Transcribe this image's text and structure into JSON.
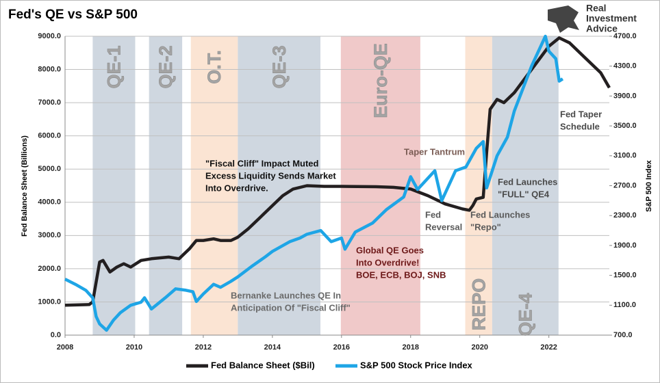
{
  "chart_data": {
    "type": "line",
    "title": "Fed's QE vs S&P 500",
    "logo": [
      "Real",
      "Investment",
      "Advice"
    ],
    "y_label": "Fed Balance Sheet (Billions)",
    "y2_label": "S&P 500 Index",
    "xlim": [
      2008,
      2023.75
    ],
    "xticks": [
      2008,
      2010,
      2012,
      2014,
      2016,
      2018,
      2020,
      2022
    ],
    "ylim": [
      0,
      9000
    ],
    "yticks": [
      {
        "value": 0,
        "label": "0.0"
      },
      {
        "value": 1000,
        "label": "1000.0"
      },
      {
        "value": 2000,
        "label": "2000.0"
      },
      {
        "value": 3000,
        "label": "3000.0"
      },
      {
        "value": 4000,
        "label": "4000.0"
      },
      {
        "value": 5000,
        "label": "5000.0"
      },
      {
        "value": 6000,
        "label": "6000.0"
      },
      {
        "value": 7000,
        "label": "7000.0"
      },
      {
        "value": 8000,
        "label": "8000.0"
      },
      {
        "value": 9000,
        "label": "9000.0"
      }
    ],
    "y2lim": [
      700,
      4700
    ],
    "y2ticks": [
      {
        "value": 700,
        "label": "700.0"
      },
      {
        "value": 1100,
        "label": "1100.0"
      },
      {
        "value": 1500,
        "label": "1500.0"
      },
      {
        "value": 1900,
        "label": "1900.0"
      },
      {
        "value": 2300,
        "label": "2300.0"
      },
      {
        "value": 2700,
        "label": "2700.0"
      },
      {
        "value": 3100,
        "label": "3100.0"
      },
      {
        "value": 3500,
        "label": "3500.0"
      },
      {
        "value": 3900,
        "label": "3900.0"
      },
      {
        "value": 4300,
        "label": "4300.0"
      },
      {
        "value": 4700,
        "label": "4700.0"
      }
    ],
    "grid": true,
    "legend": "bottom",
    "regions": [
      {
        "label": "QE-1",
        "start": 2008.8,
        "end": 2010.03,
        "color": "#cfd7e0"
      },
      {
        "label": "QE-2",
        "start": 2010.43,
        "end": 2011.39,
        "color": "#cfd7e0"
      },
      {
        "label": "O.T.",
        "start": 2011.64,
        "end": 2013.0,
        "color": "#fbe4d3"
      },
      {
        "label": "QE-3",
        "start": 2013.0,
        "end": 2015.39,
        "color": "#cfd7e0"
      },
      {
        "label": "Euro-QE",
        "start": 2015.98,
        "end": 2018.28,
        "color": "#f0c9c9"
      },
      {
        "label": "REPO",
        "start": 2019.58,
        "end": 2020.36,
        "color": "#fbe4d3"
      },
      {
        "label": "QE-4",
        "start": 2020.36,
        "end": 2022.28,
        "color": "#cfd7e0"
      }
    ],
    "annotations": [
      {
        "lines": [
          "\"Fiscal Cliff\" Impact Muted",
          "Excess Liquidity Sends Market",
          "Into Overdrive."
        ],
        "color": "#111111"
      },
      {
        "lines": [
          "Bernanke Launches QE In",
          "Anticipation Of \"Fiscal Cliff\""
        ],
        "color": "#6a6a6a"
      },
      {
        "lines": [
          "Global QE Goes",
          "Into Overdrive!",
          "BOE, ECB, BOJ, SNB"
        ],
        "color": "#6e1a1a"
      },
      {
        "lines": [
          "Taper Tantrum"
        ],
        "color": "#7a5c54"
      },
      {
        "lines": [
          "Fed",
          "Reversal"
        ],
        "color": "#5a5a5a"
      },
      {
        "lines": [
          "Fed Launches",
          "\"Repo\""
        ],
        "color": "#5a5a5a"
      },
      {
        "lines": [
          "Fed Launches",
          "\"FULL\" QE4"
        ],
        "color": "#4a4a4a"
      },
      {
        "lines": [
          "Fed Taper",
          "Schedule"
        ],
        "color": "#4a4a4a"
      }
    ],
    "series": [
      {
        "name": "Fed Balance Sheet ($Bil)",
        "color": "#231f20",
        "axis": "y",
        "x": [
          2008.0,
          2008.7,
          2008.8,
          2009.0,
          2009.1,
          2009.3,
          2009.5,
          2009.7,
          2009.9,
          2010.2,
          2010.5,
          2011.0,
          2011.3,
          2011.6,
          2011.8,
          2012.0,
          2012.3,
          2012.5,
          2012.8,
          2013.0,
          2013.3,
          2013.6,
          2014.0,
          2014.3,
          2014.6,
          2015.0,
          2015.5,
          2016.0,
          2017.0,
          2017.5,
          2018.0,
          2018.5,
          2019.0,
          2019.5,
          2019.7,
          2019.8,
          2019.9,
          2020.1,
          2020.2,
          2020.3,
          2020.5,
          2020.7,
          2021.0,
          2021.5,
          2022.0,
          2022.3,
          2022.6,
          2023.0,
          2023.5,
          2023.75
        ],
        "values": [
          900,
          920,
          1000,
          2200,
          2250,
          1900,
          2050,
          2150,
          2050,
          2250,
          2300,
          2350,
          2300,
          2600,
          2850,
          2850,
          2900,
          2850,
          2850,
          2950,
          3200,
          3500,
          3900,
          4200,
          4400,
          4500,
          4480,
          4480,
          4470,
          4450,
          4400,
          4200,
          3950,
          3800,
          3760,
          3900,
          4100,
          4150,
          5500,
          6800,
          7100,
          7000,
          7300,
          8000,
          8700,
          8950,
          8800,
          8400,
          7900,
          7450
        ]
      },
      {
        "name": "S&P 500 Stock Price Index",
        "color": "#1ea5e6",
        "axis": "y2",
        "x": [
          2008.0,
          2008.3,
          2008.6,
          2008.8,
          2008.9,
          2009.0,
          2009.2,
          2009.4,
          2009.6,
          2009.9,
          2010.2,
          2010.3,
          2010.5,
          2010.9,
          2011.2,
          2011.5,
          2011.7,
          2011.8,
          2012.0,
          2012.3,
          2012.5,
          2012.8,
          2013.0,
          2013.4,
          2013.8,
          2014.0,
          2014.5,
          2014.8,
          2015.0,
          2015.4,
          2015.7,
          2016.0,
          2016.1,
          2016.4,
          2016.9,
          2017.3,
          2017.8,
          2018.0,
          2018.2,
          2018.7,
          2018.9,
          2019.3,
          2019.6,
          2019.9,
          2020.1,
          2020.2,
          2020.5,
          2020.8,
          2021.0,
          2021.5,
          2021.9,
          2022.0,
          2022.2,
          2022.3,
          2022.4
        ],
        "values": [
          1450,
          1380,
          1300,
          1200,
          950,
          850,
          765,
          900,
          1000,
          1100,
          1140,
          1200,
          1050,
          1200,
          1320,
          1300,
          1280,
          1150,
          1250,
          1380,
          1340,
          1420,
          1480,
          1620,
          1750,
          1820,
          1950,
          2000,
          2050,
          2100,
          1950,
          2000,
          1850,
          2080,
          2200,
          2380,
          2550,
          2820,
          2650,
          2900,
          2500,
          2900,
          2950,
          3200,
          3290,
          2670,
          3100,
          3350,
          3700,
          4300,
          4700,
          4500,
          4400,
          4100,
          4130
        ]
      }
    ]
  }
}
